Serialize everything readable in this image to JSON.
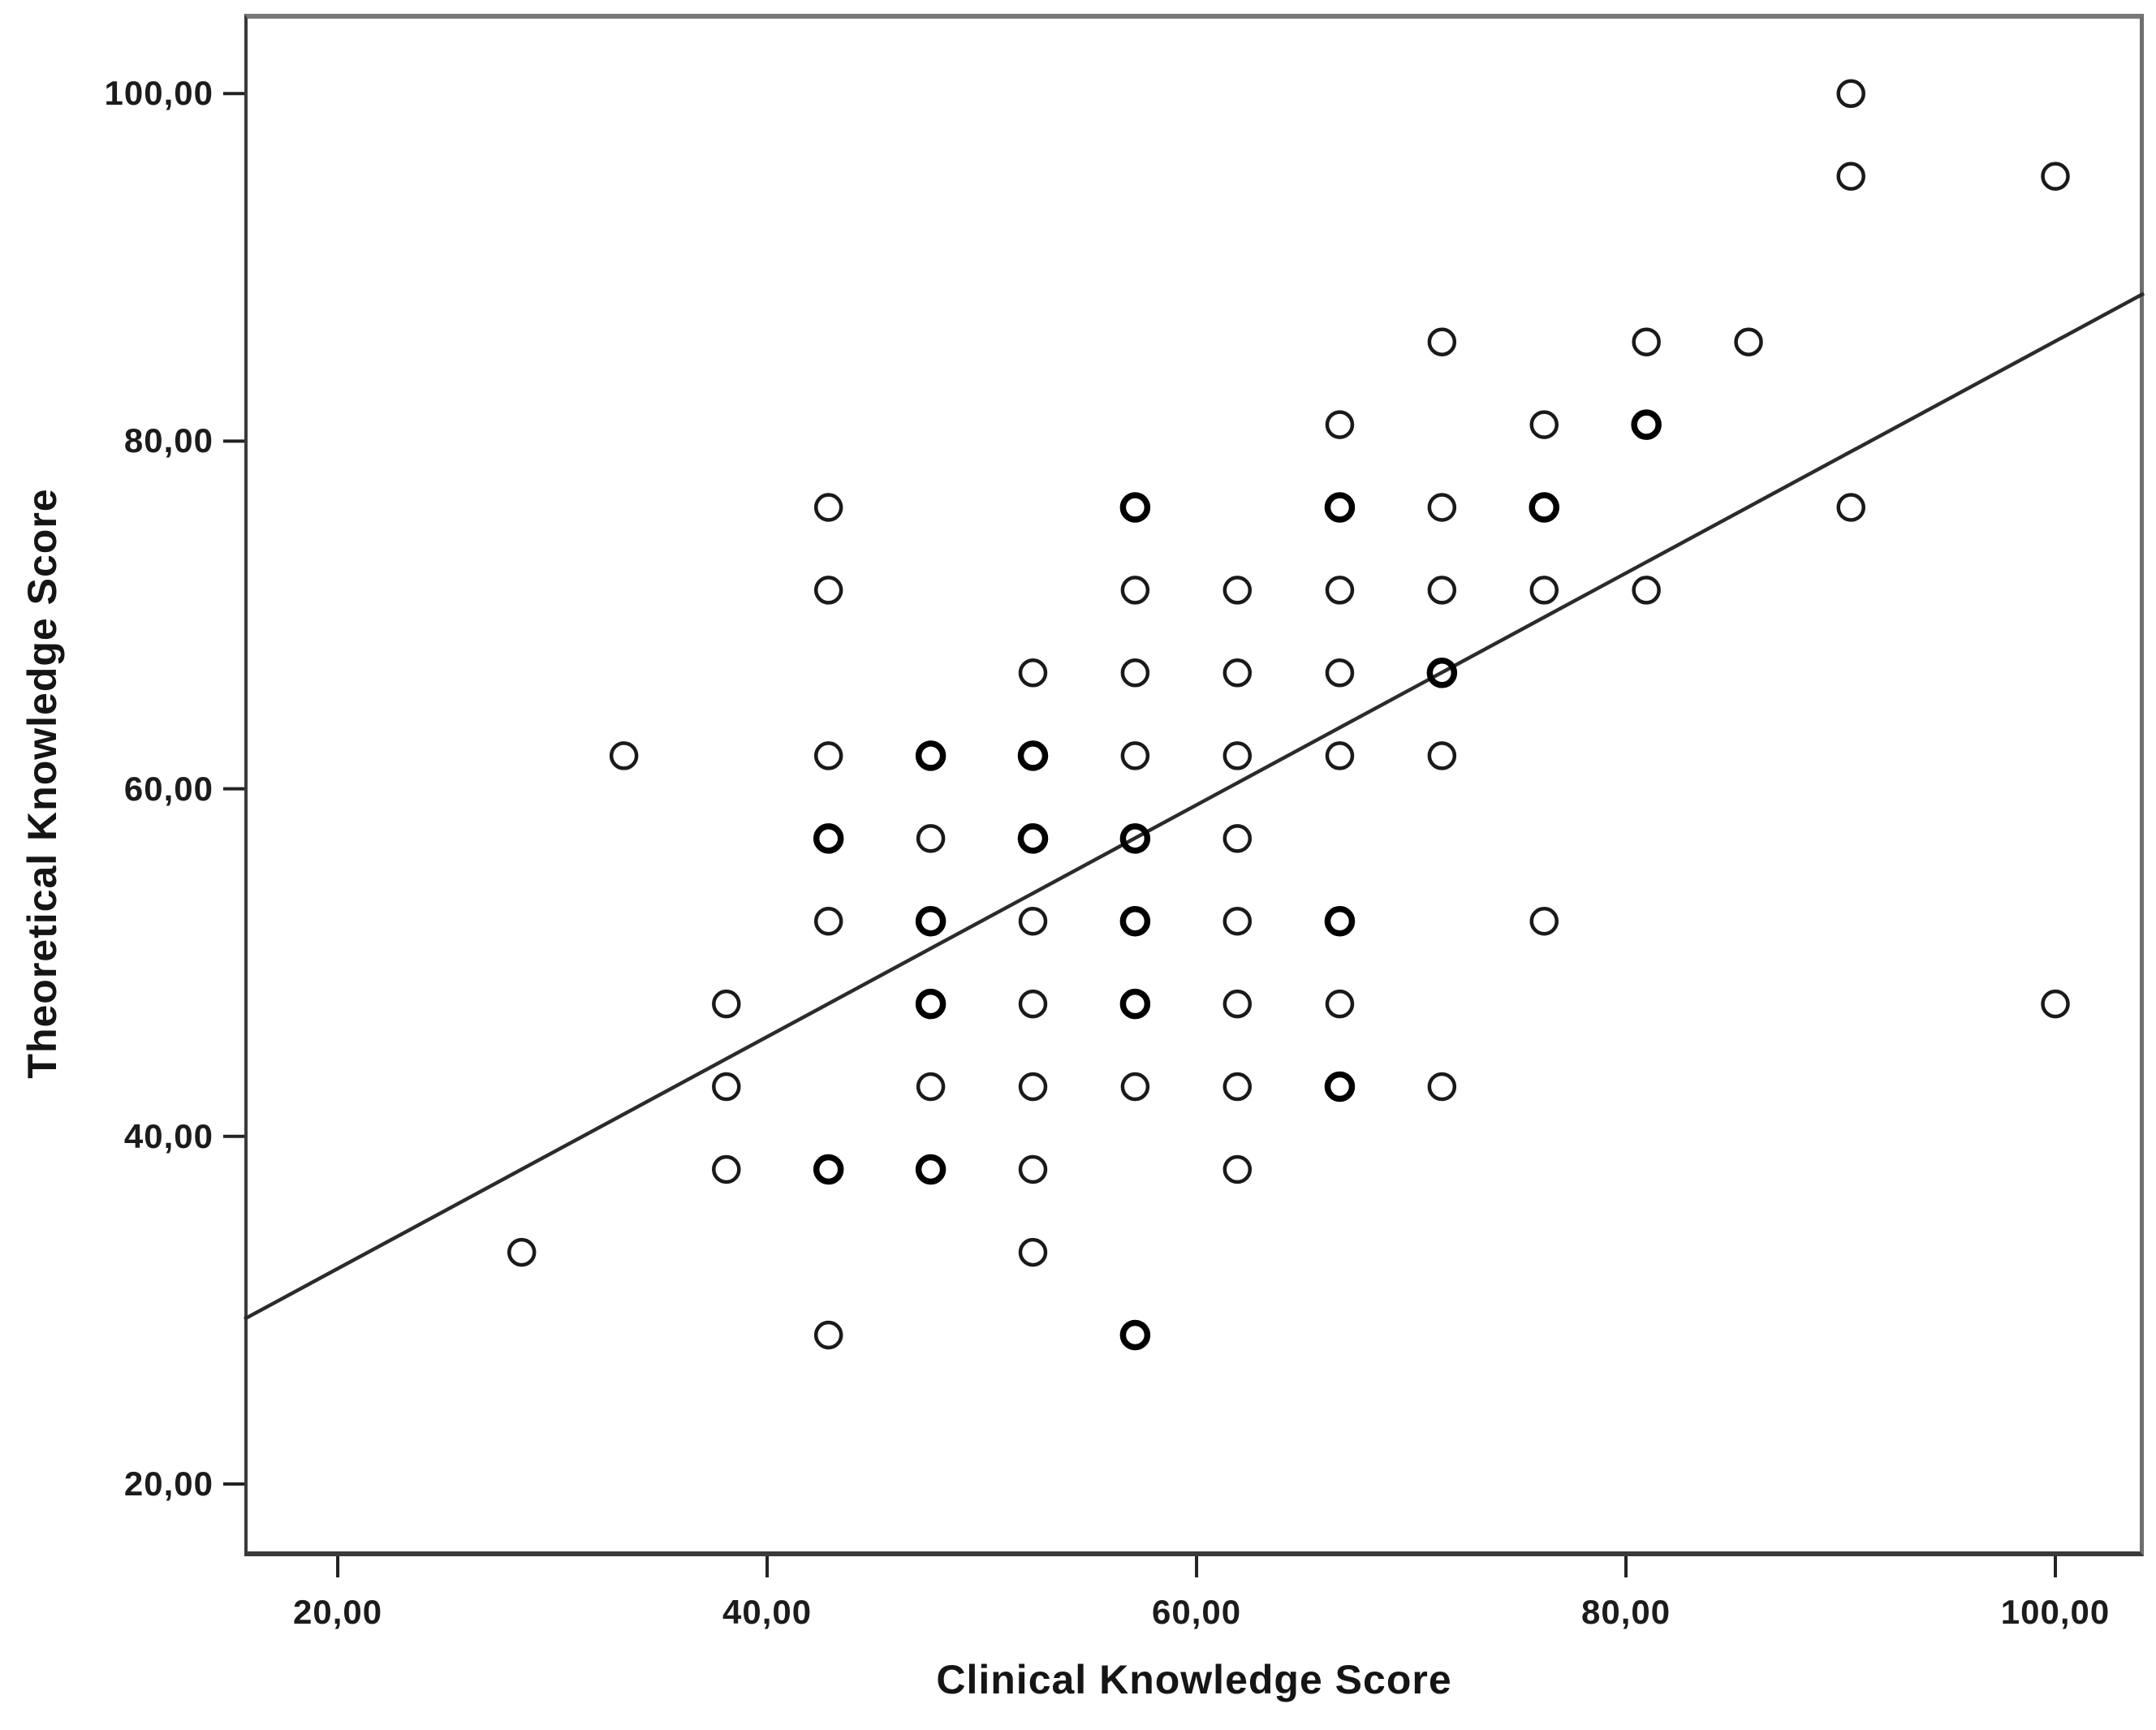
{
  "figure": {
    "x_axis_title": "Clinical Knowledge Score",
    "y_axis_title": "Theoretical Knowledge Score"
  },
  "colors": {
    "background": "#ffffff",
    "marker_stroke": "#1a1a1a",
    "marker_stroke_overlap": "#000000",
    "fit_line": "#2b2b2b",
    "frame": "#3a3a3a",
    "tick_text": "#1c1c1c"
  },
  "chart_data": {
    "type": "scatter",
    "title": "",
    "xlabel": "Clinical Knowledge Score",
    "ylabel": "Theoretical Knowledge Score",
    "grid": false,
    "legend": "none",
    "marker_style": "open-circle",
    "xlim": [
      15.65,
      104.12
    ],
    "ylim": [
      15.84,
      104.59
    ],
    "x_ticks": [
      {
        "value": 20,
        "label": "20,00"
      },
      {
        "value": 40,
        "label": "40,00"
      },
      {
        "value": 60,
        "label": "60,00"
      },
      {
        "value": 80,
        "label": "80,00"
      },
      {
        "value": 100,
        "label": "100,00"
      }
    ],
    "y_ticks": [
      {
        "value": 20,
        "label": "20,00"
      },
      {
        "value": 40,
        "label": "40,00"
      },
      {
        "value": 60,
        "label": "60,00"
      },
      {
        "value": 80,
        "label": "80,00"
      },
      {
        "value": 100,
        "label": "100,00"
      }
    ],
    "fit_line": {
      "type": "linear",
      "intercept": 19.05,
      "slope": 0.667,
      "x_start": 15.65,
      "x_end": 104.12
    },
    "points": [
      {
        "x": 90.48,
        "y": 100.0,
        "overlap": false
      },
      {
        "x": 90.48,
        "y": 95.24,
        "overlap": false
      },
      {
        "x": 100.0,
        "y": 95.24,
        "overlap": false
      },
      {
        "x": 71.43,
        "y": 85.71,
        "overlap": false
      },
      {
        "x": 80.95,
        "y": 85.71,
        "overlap": false
      },
      {
        "x": 85.71,
        "y": 85.71,
        "overlap": false
      },
      {
        "x": 66.67,
        "y": 80.95,
        "overlap": false
      },
      {
        "x": 76.19,
        "y": 80.95,
        "overlap": false
      },
      {
        "x": 80.95,
        "y": 80.95,
        "overlap": true
      },
      {
        "x": 42.86,
        "y": 76.19,
        "overlap": false
      },
      {
        "x": 57.14,
        "y": 76.19,
        "overlap": true
      },
      {
        "x": 66.67,
        "y": 76.19,
        "overlap": true
      },
      {
        "x": 71.43,
        "y": 76.19,
        "overlap": false
      },
      {
        "x": 76.19,
        "y": 76.19,
        "overlap": true
      },
      {
        "x": 90.48,
        "y": 76.19,
        "overlap": false
      },
      {
        "x": 42.86,
        "y": 71.43,
        "overlap": false
      },
      {
        "x": 57.14,
        "y": 71.43,
        "overlap": false
      },
      {
        "x": 61.9,
        "y": 71.43,
        "overlap": false
      },
      {
        "x": 66.67,
        "y": 71.43,
        "overlap": false
      },
      {
        "x": 71.43,
        "y": 71.43,
        "overlap": false
      },
      {
        "x": 76.19,
        "y": 71.43,
        "overlap": false
      },
      {
        "x": 80.95,
        "y": 71.43,
        "overlap": false
      },
      {
        "x": 52.38,
        "y": 66.67,
        "overlap": false
      },
      {
        "x": 57.14,
        "y": 66.67,
        "overlap": false
      },
      {
        "x": 61.9,
        "y": 66.67,
        "overlap": false
      },
      {
        "x": 66.67,
        "y": 66.67,
        "overlap": false
      },
      {
        "x": 71.43,
        "y": 66.67,
        "overlap": true
      },
      {
        "x": 33.33,
        "y": 61.9,
        "overlap": false
      },
      {
        "x": 42.86,
        "y": 61.9,
        "overlap": false
      },
      {
        "x": 47.62,
        "y": 61.9,
        "overlap": true
      },
      {
        "x": 52.38,
        "y": 61.9,
        "overlap": true
      },
      {
        "x": 57.14,
        "y": 61.9,
        "overlap": false
      },
      {
        "x": 61.9,
        "y": 61.9,
        "overlap": false
      },
      {
        "x": 66.67,
        "y": 61.9,
        "overlap": false
      },
      {
        "x": 71.43,
        "y": 61.9,
        "overlap": false
      },
      {
        "x": 42.86,
        "y": 57.14,
        "overlap": true
      },
      {
        "x": 47.62,
        "y": 57.14,
        "overlap": false
      },
      {
        "x": 52.38,
        "y": 57.14,
        "overlap": true
      },
      {
        "x": 57.14,
        "y": 57.14,
        "overlap": true
      },
      {
        "x": 61.9,
        "y": 57.14,
        "overlap": false
      },
      {
        "x": 42.86,
        "y": 52.38,
        "overlap": false
      },
      {
        "x": 47.62,
        "y": 52.38,
        "overlap": true
      },
      {
        "x": 52.38,
        "y": 52.38,
        "overlap": false
      },
      {
        "x": 57.14,
        "y": 52.38,
        "overlap": true
      },
      {
        "x": 61.9,
        "y": 52.38,
        "overlap": false
      },
      {
        "x": 66.67,
        "y": 52.38,
        "overlap": true
      },
      {
        "x": 76.19,
        "y": 52.38,
        "overlap": false
      },
      {
        "x": 38.1,
        "y": 47.62,
        "overlap": false
      },
      {
        "x": 47.62,
        "y": 47.62,
        "overlap": true
      },
      {
        "x": 52.38,
        "y": 47.62,
        "overlap": false
      },
      {
        "x": 57.14,
        "y": 47.62,
        "overlap": true
      },
      {
        "x": 61.9,
        "y": 47.62,
        "overlap": false
      },
      {
        "x": 66.67,
        "y": 47.62,
        "overlap": false
      },
      {
        "x": 100.0,
        "y": 47.62,
        "overlap": false
      },
      {
        "x": 38.1,
        "y": 42.86,
        "overlap": false
      },
      {
        "x": 47.62,
        "y": 42.86,
        "overlap": false
      },
      {
        "x": 52.38,
        "y": 42.86,
        "overlap": false
      },
      {
        "x": 57.14,
        "y": 42.86,
        "overlap": false
      },
      {
        "x": 61.9,
        "y": 42.86,
        "overlap": false
      },
      {
        "x": 66.67,
        "y": 42.86,
        "overlap": true
      },
      {
        "x": 71.43,
        "y": 42.86,
        "overlap": false
      },
      {
        "x": 38.1,
        "y": 38.1,
        "overlap": false
      },
      {
        "x": 42.86,
        "y": 38.1,
        "overlap": true
      },
      {
        "x": 47.62,
        "y": 38.1,
        "overlap": true
      },
      {
        "x": 52.38,
        "y": 38.1,
        "overlap": false
      },
      {
        "x": 61.9,
        "y": 38.1,
        "overlap": false
      },
      {
        "x": 28.57,
        "y": 33.33,
        "overlap": false
      },
      {
        "x": 52.38,
        "y": 33.33,
        "overlap": false
      },
      {
        "x": 42.86,
        "y": 28.57,
        "overlap": false
      },
      {
        "x": 57.14,
        "y": 28.57,
        "overlap": true
      }
    ]
  }
}
